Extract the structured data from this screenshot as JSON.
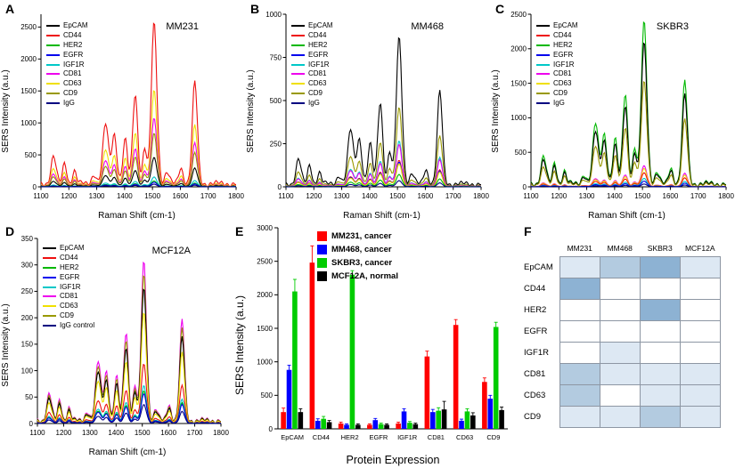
{
  "panel_letters": [
    "A",
    "B",
    "C",
    "D",
    "E",
    "F"
  ],
  "spectral_peaks": [
    {
      "x": 1145,
      "h": 0.17,
      "w": 9
    },
    {
      "x": 1185,
      "h": 0.13,
      "w": 7
    },
    {
      "x": 1220,
      "h": 0.08,
      "w": 7
    },
    {
      "x": 1290,
      "h": 0.06,
      "w": 8
    },
    {
      "x": 1332,
      "h": 0.37,
      "w": 10
    },
    {
      "x": 1363,
      "h": 0.31,
      "w": 9
    },
    {
      "x": 1402,
      "h": 0.27,
      "w": 8
    },
    {
      "x": 1438,
      "h": 0.56,
      "w": 9
    },
    {
      "x": 1472,
      "h": 0.22,
      "w": 7
    },
    {
      "x": 1506,
      "h": 1.0,
      "w": 10
    },
    {
      "x": 1552,
      "h": 0.07,
      "w": 8
    },
    {
      "x": 1602,
      "h": 0.1,
      "w": 8
    },
    {
      "x": 1652,
      "h": 0.63,
      "w": 9
    }
  ],
  "chart_data": [
    {
      "id": "A",
      "type": "line",
      "title": "MM231",
      "xlabel": "Raman Shift (cm-1)",
      "ylabel": "SERS Intensity (a.u.)",
      "xlim": [
        1100,
        1800
      ],
      "ylim": [
        0,
        2700
      ],
      "xticks": [
        1100,
        1200,
        1300,
        1400,
        1500,
        1600,
        1700,
        1800
      ],
      "yticks": [
        0,
        500,
        1000,
        1500,
        2000,
        2500
      ],
      "series": [
        {
          "name": "EpCAM",
          "color": "#000000",
          "amp": 450
        },
        {
          "name": "CD44",
          "color": "#ee1010",
          "amp": 2520
        },
        {
          "name": "HER2",
          "color": "#00b800",
          "amp": 90
        },
        {
          "name": "EGFR",
          "color": "#0000ee",
          "amp": 70
        },
        {
          "name": "IGF1R",
          "color": "#00c8c8",
          "amp": 150
        },
        {
          "name": "CD81",
          "color": "#ee00ee",
          "amp": 1050
        },
        {
          "name": "CD63",
          "color": "#f0e000",
          "amp": 1480
        },
        {
          "name": "CD9",
          "color": "#999900",
          "amp": 820
        },
        {
          "name": "IgG",
          "color": "#000080",
          "amp": 40
        }
      ]
    },
    {
      "id": "B",
      "type": "line",
      "title": "MM468",
      "xlabel": "Raman Shift (cm-1)",
      "ylabel": "SERS Intensity (a.u.)",
      "xlim": [
        1100,
        1800
      ],
      "ylim": [
        0,
        1000
      ],
      "xticks": [
        1100,
        1200,
        1300,
        1400,
        1500,
        1600,
        1700,
        1800
      ],
      "yticks": [
        0,
        250,
        500,
        750,
        1000
      ],
      "series": [
        {
          "name": "EpCAM",
          "color": "#000000",
          "amp": 850
        },
        {
          "name": "CD44",
          "color": "#ee1010",
          "amp": 150
        },
        {
          "name": "HER2",
          "color": "#00b800",
          "amp": 70
        },
        {
          "name": "EGFR",
          "color": "#0000ee",
          "amp": 140
        },
        {
          "name": "IGF1R",
          "color": "#00c8c8",
          "amp": 260
        },
        {
          "name": "CD81",
          "color": "#ee00ee",
          "amp": 240
        },
        {
          "name": "CD63",
          "color": "#f0e000",
          "amp": 130
        },
        {
          "name": "CD9",
          "color": "#999900",
          "amp": 450
        },
        {
          "name": "IgG",
          "color": "#000080",
          "amp": 35
        }
      ]
    },
    {
      "id": "C",
      "type": "line",
      "title": "SKBR3",
      "xlabel": "Raman Shift (cm-1)",
      "ylabel": "SERS Intensity (a.u.)",
      "xlim": [
        1100,
        1800
      ],
      "ylim": [
        0,
        2500
      ],
      "xticks": [
        1100,
        1200,
        1300,
        1400,
        1500,
        1600,
        1700,
        1800
      ],
      "yticks": [
        0,
        500,
        1000,
        1500,
        2000,
        2500
      ],
      "series": [
        {
          "name": "EpCAM",
          "color": "#000000",
          "amp": 2050
        },
        {
          "name": "CD44",
          "color": "#ee1010",
          "amp": 200
        },
        {
          "name": "HER2",
          "color": "#00b800",
          "amp": 2350
        },
        {
          "name": "EGFR",
          "color": "#0000ee",
          "amp": 80
        },
        {
          "name": "IGF1R",
          "color": "#00c8c8",
          "amp": 120
        },
        {
          "name": "CD81",
          "color": "#ee00ee",
          "amp": 300
        },
        {
          "name": "CD63",
          "color": "#f0e000",
          "amp": 260
        },
        {
          "name": "CD9",
          "color": "#999900",
          "amp": 1500
        },
        {
          "name": "IgG",
          "color": "#000080",
          "amp": 40
        }
      ]
    },
    {
      "id": "D",
      "type": "line",
      "title": "MCF12A",
      "xlabel": "Raman Shift (cm-1)",
      "ylabel": "SERS Intensity (a.u.)",
      "xlim": [
        1100,
        1800
      ],
      "ylim": [
        0,
        350
      ],
      "xticks": [
        1100,
        1200,
        1300,
        1400,
        1500,
        1600,
        1700,
        1800
      ],
      "yticks": [
        0,
        50,
        100,
        150,
        200,
        250,
        300,
        350
      ],
      "series": [
        {
          "name": "EpCAM",
          "color": "#000000",
          "amp": 250
        },
        {
          "name": "CD44",
          "color": "#ee1010",
          "amp": 110
        },
        {
          "name": "HER2",
          "color": "#00b800",
          "amp": 60
        },
        {
          "name": "EGFR",
          "color": "#0000ee",
          "amp": 55
        },
        {
          "name": "IGF1R",
          "color": "#00c8c8",
          "amp": 70
        },
        {
          "name": "CD81",
          "color": "#ee00ee",
          "amp": 300
        },
        {
          "name": "CD63",
          "color": "#f0e000",
          "amp": 205
        },
        {
          "name": "CD9",
          "color": "#999900",
          "amp": 275
        },
        {
          "name": "IgG control",
          "color": "#000080",
          "amp": 35
        }
      ]
    },
    {
      "id": "E",
      "type": "bar",
      "xlabel": "Protein Expression",
      "ylabel": "SERS Intensity (a.u.)",
      "categories": [
        "EpCAM",
        "CD44",
        "HER2",
        "EGFR",
        "IGF1R",
        "CD81",
        "CD63",
        "CD9"
      ],
      "ylim": [
        0,
        3000
      ],
      "yticks": [
        0,
        500,
        1000,
        1500,
        2000,
        2500,
        3000
      ],
      "series": [
        {
          "name": "MM231, cancer",
          "color": "#ff0000",
          "values": [
            250,
            2480,
            80,
            60,
            80,
            1080,
            1550,
            700
          ],
          "errors": [
            60,
            250,
            20,
            15,
            20,
            80,
            80,
            60
          ]
        },
        {
          "name": "MM468, cancer",
          "color": "#0000ff",
          "values": [
            880,
            120,
            60,
            130,
            260,
            250,
            120,
            450
          ],
          "errors": [
            70,
            30,
            15,
            25,
            40,
            40,
            25,
            50
          ]
        },
        {
          "name": "SKBR3, cancer",
          "color": "#00cc00",
          "values": [
            2050,
            150,
            2300,
            70,
            90,
            270,
            260,
            1520
          ],
          "errors": [
            180,
            35,
            60,
            15,
            20,
            45,
            40,
            70
          ]
        },
        {
          "name": "MCF12A, normal",
          "color": "#000000",
          "values": [
            250,
            100,
            60,
            60,
            70,
            290,
            200,
            280
          ],
          "errors": [
            50,
            25,
            15,
            15,
            15,
            120,
            40,
            45
          ]
        }
      ]
    },
    {
      "id": "F",
      "type": "heatmap",
      "columns": [
        "MM231",
        "MM468",
        "SKBR3",
        "MCF12A"
      ],
      "rows": [
        "EpCAM",
        "CD44",
        "HER2",
        "EGFR",
        "IGF1R",
        "CD81",
        "CD63",
        "CD9"
      ],
      "values": [
        [
          1,
          2,
          3,
          1
        ],
        [
          3,
          0,
          0,
          0
        ],
        [
          0,
          0,
          3,
          0
        ],
        [
          0,
          0,
          0,
          0
        ],
        [
          0,
          1,
          0,
          0
        ],
        [
          2,
          1,
          1,
          1
        ],
        [
          2,
          0,
          1,
          1
        ],
        [
          1,
          1,
          2,
          1
        ]
      ],
      "scale": {
        "0": "#ffffff",
        "1": "#dde8f3",
        "2": "#b3cbe0",
        "3": "#8db2d3"
      }
    }
  ]
}
